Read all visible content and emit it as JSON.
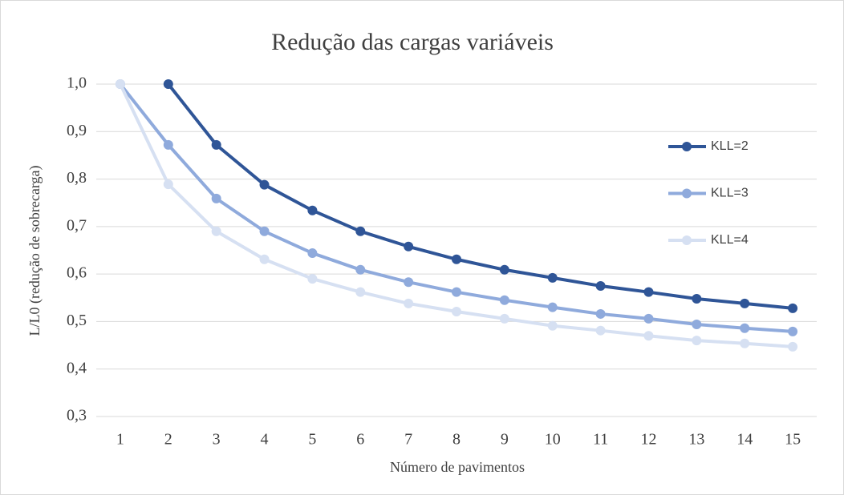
{
  "chart_data": {
    "type": "line",
    "title": "Redução das cargas variáveis",
    "xlabel": "Número de pavimentos",
    "ylabel": "L/L0 (redução de sobrecarga)",
    "categories": [
      "1",
      "2",
      "3",
      "4",
      "5",
      "6",
      "7",
      "8",
      "9",
      "10",
      "11",
      "12",
      "13",
      "14",
      "15"
    ],
    "series": [
      {
        "name": "KLL=2",
        "color": "#2f5597",
        "values": [
          null,
          1.0,
          0.872,
          0.788,
          0.734,
          0.69,
          0.658,
          0.631,
          0.609,
          0.592,
          0.575,
          0.562,
          0.548,
          0.538,
          0.528
        ]
      },
      {
        "name": "KLL=3",
        "color": "#8faadc",
        "values": [
          1.0,
          0.872,
          0.759,
          0.69,
          0.644,
          0.609,
          0.583,
          0.562,
          0.545,
          0.53,
          0.516,
          0.506,
          0.494,
          0.486,
          0.479
        ]
      },
      {
        "name": "KLL=4",
        "color": "#d6e0f2",
        "values": [
          1.0,
          0.789,
          0.69,
          0.631,
          0.59,
          0.562,
          0.538,
          0.521,
          0.506,
          0.491,
          0.481,
          0.47,
          0.46,
          0.454,
          0.447
        ]
      }
    ],
    "ylim": [
      0.3,
      1.0
    ],
    "yticks": [
      {
        "value": 0.3,
        "label": "0,3"
      },
      {
        "value": 0.4,
        "label": "0,4"
      },
      {
        "value": 0.5,
        "label": "0,5"
      },
      {
        "value": 0.6,
        "label": "0,6"
      },
      {
        "value": 0.7,
        "label": "0,7"
      },
      {
        "value": 0.8,
        "label": "0,8"
      },
      {
        "value": 0.9,
        "label": "0,9"
      },
      {
        "value": 1.0,
        "label": "1,0"
      }
    ],
    "grid": true,
    "legend": "right"
  }
}
